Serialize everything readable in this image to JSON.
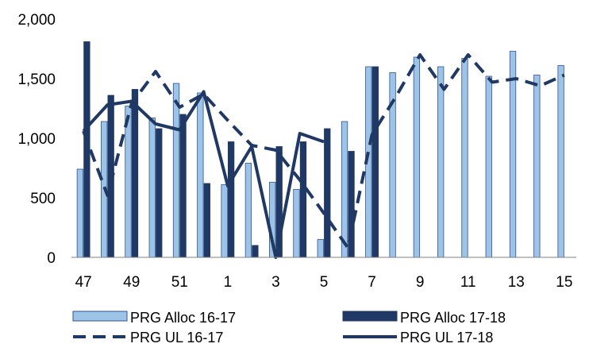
{
  "chart_data": {
    "type": "bar",
    "title": "",
    "xlabel": "",
    "ylabel": "",
    "ylim": [
      0,
      2000
    ],
    "yticks": [
      "0",
      "500",
      "1,000",
      "1,500",
      "2,000"
    ],
    "categories": [
      "47",
      "48",
      "49",
      "50",
      "51",
      "52",
      "1",
      "2",
      "3",
      "4",
      "5",
      "6",
      "7",
      "8",
      "9",
      "10",
      "11",
      "12",
      "13",
      "14",
      "15"
    ],
    "xtick_labels": [
      "47",
      "",
      "49",
      "",
      "51",
      "",
      "1",
      "",
      "3",
      "",
      "5",
      "",
      "7",
      "",
      "9",
      "",
      "11",
      "",
      "13",
      "",
      "15"
    ],
    "grid": false,
    "legend_position": "bottom",
    "bar_series": [
      {
        "name": "PRG Alloc 16-17",
        "color": "#9dc3e6",
        "values": [
          740,
          1140,
          1270,
          1170,
          1460,
          1380,
          610,
          790,
          630,
          570,
          150,
          1140,
          1600,
          1550,
          1680,
          1600,
          1670,
          1520,
          1730,
          1530,
          1610
        ]
      },
      {
        "name": "PRG Alloc 17-18",
        "color": "#203864",
        "values": [
          1810,
          1360,
          1410,
          1080,
          1200,
          620,
          970,
          100,
          930,
          970,
          1080,
          890,
          1600,
          null,
          null,
          null,
          null,
          null,
          null,
          null,
          null
        ]
      }
    ],
    "line_series": [
      {
        "name": "PRG UL 16-17",
        "color": "#203864",
        "style": "dashed",
        "values": [
          1060,
          520,
          1290,
          1560,
          1260,
          1370,
          1150,
          940,
          900,
          650,
          370,
          80,
          1030,
          1350,
          1700,
          1410,
          1700,
          1470,
          1500,
          1440,
          1530
        ]
      },
      {
        "name": "PRG UL 17-18",
        "color": "#203864",
        "style": "solid",
        "values": [
          1060,
          1280,
          1310,
          1120,
          1070,
          1390,
          600,
          930,
          0,
          1040,
          970,
          null,
          null,
          null,
          null,
          null,
          null,
          null,
          null,
          null,
          null
        ]
      }
    ]
  }
}
